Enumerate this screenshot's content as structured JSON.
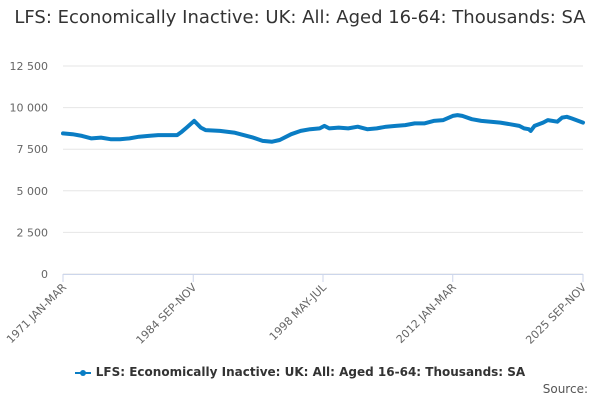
{
  "chart_data": {
    "type": "line",
    "title": "LFS: Economically Inactive: UK: All: Aged 16-64: Thousands: SA",
    "xlabel": "",
    "ylabel": "",
    "ylim": [
      0,
      12500
    ],
    "yticks": [
      "0",
      "2 500",
      "5 000",
      "7 500",
      "10 000",
      "12 500"
    ],
    "ytick_values": [
      0,
      2500,
      5000,
      7500,
      10000,
      12500
    ],
    "xticks": [
      "1971 JAN-MAR",
      "1984 SEP-NOV",
      "1998 MAY-JUL",
      "2012 JAN-MAR",
      "2025 SEP-NOV"
    ],
    "xtick_values": [
      1971.0,
      1984.7,
      1998.35,
      2012.0,
      2025.7
    ],
    "xlim": [
      1971.0,
      2025.7
    ],
    "grid": true,
    "legend_position": "bottom",
    "color": "#0a7dc4",
    "series": [
      {
        "name": "LFS: Economically Inactive: UK: All: Aged 16-64: Thousands: SA",
        "x": [
          1971,
          1972,
          1973,
          1974,
          1975,
          1976,
          1977,
          1978,
          1979,
          1980,
          1981,
          1982,
          1983,
          1983.5,
          1984,
          1984.8,
          1985.5,
          1986,
          1987.5,
          1989,
          1990,
          1991,
          1992,
          1993,
          1993.8,
          1995,
          1996,
          1997,
          1998,
          1998.5,
          1999,
          2000,
          2001,
          2002,
          2003,
          2004,
          2005,
          2006,
          2007,
          2008,
          2009,
          2010,
          2011,
          2012,
          2012.5,
          2013,
          2014,
          2015,
          2016,
          2017,
          2018,
          2019,
          2019.5,
          2020,
          2020.2,
          2020.6,
          2021.5,
          2022,
          2023,
          2023.5,
          2024,
          2024.5,
          2025.7
        ],
        "y": [
          8450,
          8400,
          8300,
          8150,
          8200,
          8100,
          8100,
          8150,
          8250,
          8300,
          8350,
          8350,
          8350,
          8550,
          8800,
          9200,
          8800,
          8650,
          8600,
          8500,
          8350,
          8200,
          8000,
          7950,
          8050,
          8400,
          8600,
          8700,
          8750,
          8900,
          8750,
          8800,
          8750,
          8850,
          8700,
          8750,
          8850,
          8900,
          8950,
          9050,
          9050,
          9200,
          9250,
          9500,
          9550,
          9500,
          9300,
          9200,
          9150,
          9100,
          9000,
          8900,
          8750,
          8700,
          8600,
          8900,
          9100,
          9250,
          9150,
          9400,
          9450,
          9350,
          9100
        ]
      }
    ],
    "source_label": "Source:"
  }
}
